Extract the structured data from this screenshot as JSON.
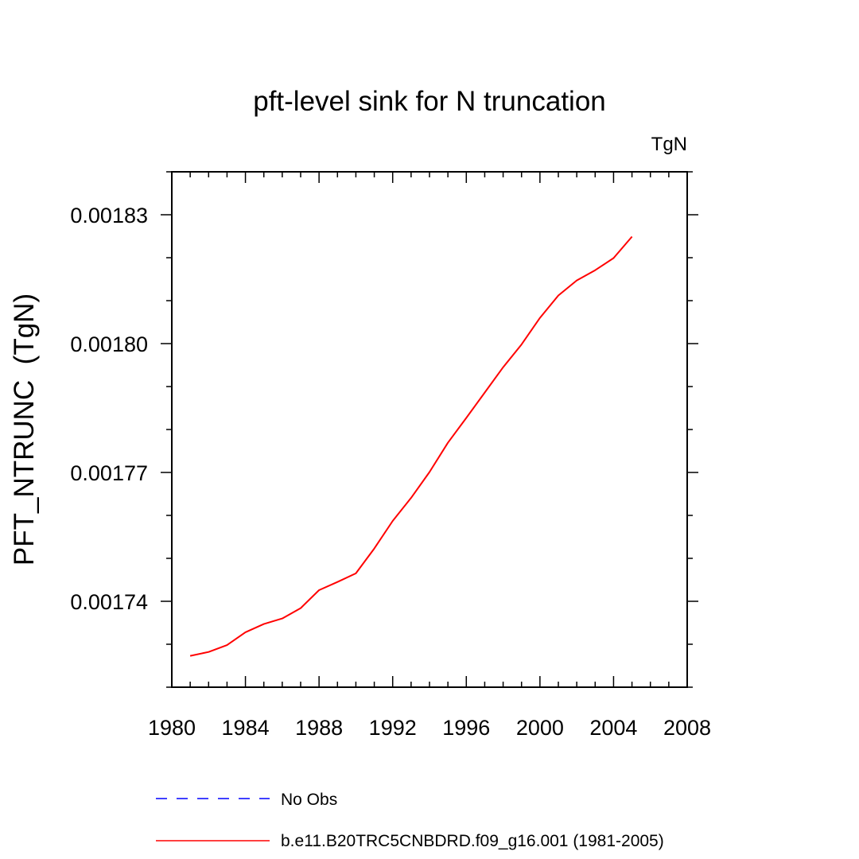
{
  "chart_data": {
    "type": "line",
    "title": "pft-level sink for N truncation",
    "units_label": "TgN",
    "xlabel": "",
    "ylabel": "PFT_NTRUNC  (TgN)",
    "xlim": [
      1980,
      2008
    ],
    "ylim": [
      0.00172,
      0.00184
    ],
    "x_ticks": [
      1980,
      1984,
      1988,
      1992,
      1996,
      2000,
      2004,
      2008
    ],
    "x_tick_labels": [
      "1980",
      "1984",
      "1988",
      "1992",
      "1996",
      "2000",
      "2004",
      "2008"
    ],
    "x_minor_step": 1,
    "y_ticks": [
      0.00174,
      0.00177,
      0.0018,
      0.00183
    ],
    "y_tick_labels": [
      "0.00174",
      "0.00177",
      "0.00180",
      "0.00183"
    ],
    "y_minor_step": 1e-05,
    "grid": false,
    "legend_position": "bottom",
    "series": [
      {
        "name": "No Obs",
        "color": "#0000ff",
        "line_style": "dashed",
        "x": [],
        "y": []
      },
      {
        "name": "b.e11.B20TRC5CNBDRD.f09_g16.001 (1981-2005)",
        "color": "#ff0000",
        "line_style": "solid",
        "x": [
          1981,
          1982,
          1983,
          1984,
          1985,
          1986,
          1987,
          1988,
          1989,
          1990,
          1991,
          1992,
          1993,
          1994,
          1995,
          1996,
          1997,
          1998,
          1999,
          2000,
          2001,
          2002,
          2003,
          2004,
          2005
        ],
        "y": [
          0.0017273,
          0.0017282,
          0.0017298,
          0.0017328,
          0.0017347,
          0.001736,
          0.0017384,
          0.0017426,
          0.0017445,
          0.0017465,
          0.0017523,
          0.0017587,
          0.0017641,
          0.0017701,
          0.0017769,
          0.0017827,
          0.0017886,
          0.0017945,
          0.0017998,
          0.001806,
          0.0018112,
          0.0018147,
          0.0018171,
          0.0018199,
          0.0018249
        ]
      }
    ]
  }
}
